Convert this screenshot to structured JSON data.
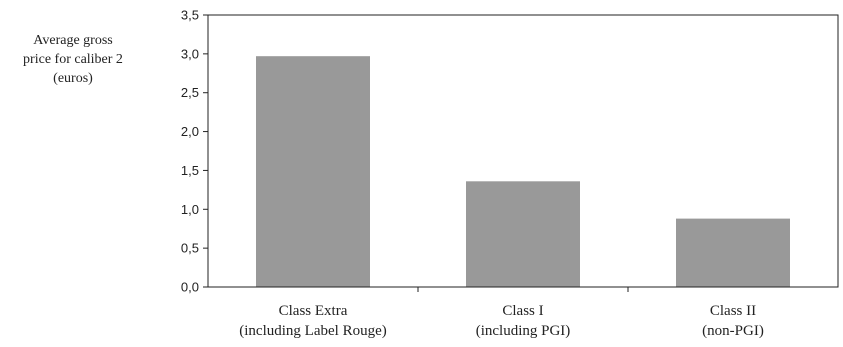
{
  "chart_data": {
    "type": "bar",
    "ylabel": [
      "Average gross",
      "price for caliber 2",
      "(euros)"
    ],
    "categories": [
      [
        "Class Extra",
        "(including Label Rouge)"
      ],
      [
        "Class I",
        "(including PGI)"
      ],
      [
        "Class II",
        "(non-PGI)"
      ]
    ],
    "values": [
      2.97,
      1.36,
      0.88
    ],
    "ylim": [
      0,
      3.5
    ],
    "yticks": [
      "0,0",
      "0,5",
      "1,0",
      "1,5",
      "2,0",
      "2,5",
      "3,0",
      "3,5"
    ],
    "grid": false,
    "bar_color": "#999999",
    "axis_color": "#222222"
  }
}
